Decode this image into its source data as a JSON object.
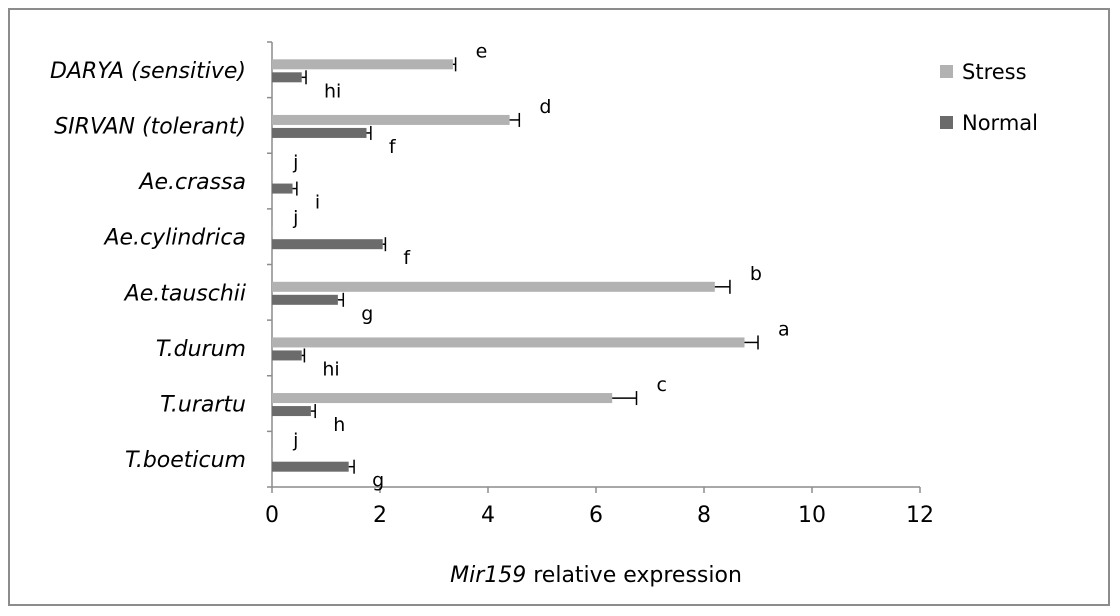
{
  "chart_data": {
    "type": "bar",
    "orientation": "horizontal",
    "categories": [
      "DARYA (sensitive)",
      "SIRVAN (tolerant)",
      "Ae.crassa",
      "Ae.cylindrica",
      "Ae.tauschii",
      "T.durum",
      "T.urartu",
      "T.boeticum"
    ],
    "series": [
      {
        "name": "Stress",
        "color": "#b2b2b2",
        "values": [
          3.35,
          4.4,
          0.02,
          0.02,
          8.2,
          8.75,
          6.3,
          0.02
        ],
        "errors": [
          0.05,
          0.18,
          0,
          0,
          0.28,
          0.25,
          0.45,
          0
        ],
        "labels": [
          "e",
          "d",
          "j",
          "j",
          "b",
          "a",
          "c",
          "j"
        ]
      },
      {
        "name": "Normal",
        "color": "#6b6b6b",
        "values": [
          0.55,
          1.75,
          0.38,
          2.05,
          1.22,
          0.55,
          0.72,
          1.42
        ],
        "errors": [
          0.08,
          0.08,
          0.08,
          0.05,
          0.1,
          0.05,
          0.08,
          0.1
        ],
        "labels": [
          "hi",
          "f",
          "i",
          "f",
          "g",
          "hi",
          "h",
          "g"
        ]
      }
    ],
    "xlim": [
      0,
      12
    ],
    "xticks": [
      "0",
      "2",
      "4",
      "6",
      "8",
      "10",
      "12"
    ],
    "xlabel_italic": "Mir159",
    "xlabel_rest": " relative expression",
    "legend_position": "top-right",
    "grid": false
  }
}
